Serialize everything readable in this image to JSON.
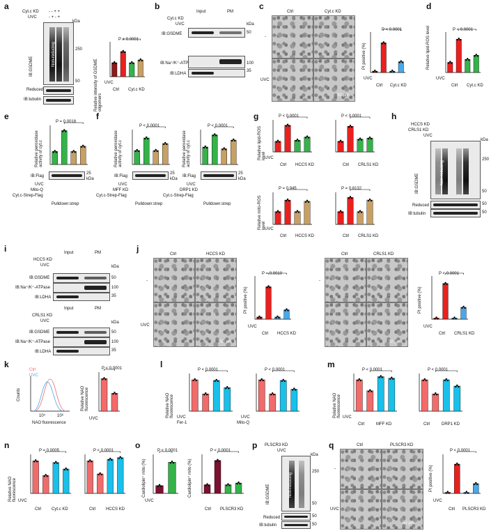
{
  "colors": {
    "ctrl": "#8c1b1b",
    "uvc": "#e8211f",
    "green": "#35b34a",
    "tan": "#c8a064",
    "blue": "#4aa8e8",
    "cyan": "#19c0ea",
    "dkred": "#7a1230",
    "pink": "#f26b6b"
  },
  "panels": {
    "a": {
      "letter": "a",
      "rows": [
        "Cyt.c KD",
        "UVC"
      ],
      "signs": [
        "- - + +",
        "- + - +"
      ],
      "kda": "kDa",
      "m250": "250",
      "m50": "50",
      "side": "IB:GSDME",
      "nonred": "Non-reducing",
      "reduced": "Reduced",
      "tubulin": "IB:tubulin",
      "ylabel": "Relative intensity of GSDME oligomers",
      "p": "P < 0.0001",
      "uvc": "UVC",
      "x1": "Ctrl",
      "x2": "Cyt.c KD"
    },
    "b": {
      "letter": "b",
      "input": "Input",
      "pm": "PM",
      "rows": [
        "Cyt.c KD",
        "UVC"
      ],
      "kda": "kDa",
      "l1": "IB:GSDME",
      "l2": "IB:Na⁺/K⁺-ATPase",
      "l3": "IB:LDHA",
      "m50": "50",
      "m100": "100",
      "m35": "35"
    },
    "c": {
      "letter": "c",
      "ctrl": "Ctrl",
      "kd": "Cyt.c KD",
      "dash": "-",
      "uvc": "UVC",
      "scale": "50 µm",
      "ylabel": "PI positive (%)",
      "p": "P < 0.0001",
      "x1": "Ctrl",
      "x2": "Cyt.c KD"
    },
    "d": {
      "letter": "d",
      "ylabel": "Relative lipid-ROS level",
      "p": "P < 0.0001",
      "uvc": "UVC",
      "x1": "Ctrl",
      "x2": "Cyt.c KD"
    },
    "e": {
      "letter": "e",
      "ylabel": "Relative peroxidase activity of cyt.c",
      "p": "P = 0.0018",
      "rows": [
        "UVC",
        "Mito-Q",
        "Cyt.c-Strep-Flag"
      ],
      "ib": "IB:Flag",
      "m25": "25",
      "kda": "kDa",
      "pull": "Pulldown:strep"
    },
    "f": {
      "letter": "f",
      "ylabel": "Relative peroxidase activity of cyt.c",
      "p1": "P < 0.0001",
      "p2": "P < 0.0001",
      "rows1": [
        "UVC",
        "MFF KD",
        "Cyt.c-Strep-Flag"
      ],
      "rows2": [
        "UVC",
        "DRP1 KD",
        "Cyt.c-Strep-Flag"
      ],
      "ib": "IB:Flag",
      "m25": "25",
      "kda": "kDa",
      "pull": "Pulldown:strep"
    },
    "g": {
      "letter": "g",
      "ylabel1": "Relative lipid-ROS level",
      "ylabel2": "Relative mito-ROS level",
      "p1": "P < 0.0001",
      "p2": "P < 0.0001",
      "p3": "P = 0.945",
      "p4": "P = 0.8132",
      "uvc": "UVC",
      "x1": "Ctrl",
      "x2": "HCCS KD",
      "x3": "CRLS1 KD"
    },
    "h": {
      "letter": "h",
      "rows": [
        "HCCS KD",
        "CRLS1 KD",
        "UVC"
      ],
      "kda": "kDa",
      "m250": "250",
      "m50": "50",
      "side": "IB:GSDME",
      "nonred": "Non-reducing",
      "reduced": "Reduced",
      "tubulin": "IB:tubulin"
    },
    "i": {
      "letter": "i",
      "input": "Input",
      "pm": "PM",
      "rows1": [
        "HCCS KD",
        "UVC"
      ],
      "rows2": [
        "CRLS1 KD",
        "UVC"
      ],
      "kda": "kDa",
      "l1": "IB:GSDME",
      "l2": "IB:Na⁺/K⁺-ATPase",
      "l3": "IB:LDHA",
      "m50": "50",
      "m100": "100",
      "m35": "35"
    },
    "j": {
      "letter": "j",
      "ctrl": "Ctrl",
      "hccs": "HCCS KD",
      "crls": "CRLS1 KD",
      "dash": "-",
      "uvc": "UVC",
      "scale": "50 µm",
      "ylabel": "PI positive (%)",
      "p1": "P = 0.0010",
      "p2": "P < 0.0001",
      "x1": "Ctrl",
      "x2": "HCCS KD",
      "x3": "CRLS1 KD"
    },
    "k": {
      "letter": "k",
      "leg1": "Ctrl",
      "leg2": "UVC",
      "ylabel": "Counts",
      "xlabel": "NAO fluorescence",
      "t1": "10⁴",
      "t2": "10⁶",
      "ylabel2": "Relative NAO fluorescence",
      "p": "P < 0.0001",
      "uvc": "UVC"
    },
    "l": {
      "letter": "l",
      "ylabel": "Relative NAO fluorescence",
      "p1": "P < 0.0001",
      "p2": "P < 0.0001",
      "uvc": "UVC",
      "fer": "Fer-1",
      "mito": "Mito-Q"
    },
    "m": {
      "letter": "m",
      "ylabel": "Relative NAO fluorescence",
      "p1": "P < 0.0001",
      "p2": "P < 0.0001",
      "uvc": "UVC",
      "x1": "Ctrl",
      "x2": "MFF KD",
      "x3": "DRP1 KD"
    },
    "n": {
      "letter": "n",
      "ylabel": "Relative NAO fluorescence",
      "p1": "P = 0.0005",
      "p2": "P < 0.0001",
      "uvc": "UVC",
      "x1": "Ctrl",
      "x2": "Cyt.c KD",
      "x3": "HCCS KD"
    },
    "o": {
      "letter": "o",
      "ylabel": "Cardiolipin⁺ mito (%)",
      "p1": "P < 0.0001",
      "p2": "P < 0.0001",
      "uvc": "UVC",
      "x1": "Ctrl",
      "x2": "PLSCR3 KD"
    },
    "p": {
      "letter": "p",
      "rows": [
        "PLSCR3 KD",
        "UVC"
      ],
      "kda": "kDa",
      "m250": "250",
      "m50": "50",
      "side": "IB:GSDME",
      "nonred": "Non-reducing",
      "reduced": "Reduced",
      "tubulin": "IB:tubulin"
    },
    "q": {
      "letter": "q",
      "ctrl": "Ctrl",
      "kd": "PLSCR3 KD",
      "dash": "-",
      "uvc": "UVC",
      "scale": "50 µm",
      "ylabel": "PI positive (%)",
      "p": "P < 0.0001",
      "x1": "Ctrl",
      "x2": "PLSCR3 KD"
    }
  },
  "chart_data": [
    {
      "type": "bar",
      "id": "a-quant",
      "categories": [
        "Ctrl -",
        "Ctrl UVC",
        "Cyt.c KD -",
        "Cyt.c KD UVC"
      ],
      "values": [
        1.0,
        1.8,
        1.0,
        1.2
      ],
      "ylim": [
        0,
        2.5
      ]
    },
    {
      "type": "bar",
      "id": "c-quant",
      "categories": [
        "Ctrl -",
        "Ctrl UVC",
        "Cyt.c KD -",
        "Cyt.c KD UVC"
      ],
      "values": [
        2,
        44,
        2,
        16
      ],
      "ylim": [
        0,
        60
      ]
    },
    {
      "type": "bar",
      "id": "d-quant",
      "categories": [
        "Ctrl -",
        "Ctrl UVC",
        "Cyt.c KD -",
        "Cyt.c KD UVC"
      ],
      "values": [
        1.0,
        3.3,
        1.3,
        1.7
      ],
      "ylim": [
        0,
        4
      ]
    },
    {
      "type": "bar",
      "id": "e-quant",
      "categories": [
        "-",
        "UVC",
        "Mito-Q",
        "UVC+Mito-Q"
      ],
      "values": [
        1.0,
        2.6,
        1.0,
        1.4
      ],
      "ylim": [
        0,
        3
      ]
    },
    {
      "type": "bar",
      "id": "f1-quant",
      "categories": [
        "-",
        "UVC",
        "MFF KD",
        "UVC+MFF KD"
      ],
      "values": [
        1.0,
        1.9,
        1.0,
        1.5
      ],
      "ylim": [
        0,
        2.5
      ]
    },
    {
      "type": "bar",
      "id": "f2-quant",
      "categories": [
        "-",
        "UVC",
        "DRP1 KD",
        "UVC+DRP1 KD"
      ],
      "values": [
        1.0,
        1.7,
        0.9,
        1.4
      ],
      "ylim": [
        0,
        2
      ]
    },
    {
      "type": "bar",
      "id": "g1",
      "categories": [
        "Ctrl -",
        "Ctrl UVC",
        "HCCS KD -",
        "HCCS KD UVC"
      ],
      "values": [
        1.0,
        2.5,
        1.1,
        1.4
      ],
      "ylim": [
        0,
        3
      ]
    },
    {
      "type": "bar",
      "id": "g2",
      "categories": [
        "Ctrl -",
        "Ctrl UVC",
        "CRLS1 KD -",
        "CRLS1 KD UVC"
      ],
      "values": [
        1.0,
        2.4,
        1.2,
        1.3
      ],
      "ylim": [
        0,
        3
      ]
    },
    {
      "type": "bar",
      "id": "g3",
      "categories": [
        "Ctrl -",
        "Ctrl UVC",
        "HCCS KD -",
        "HCCS KD UVC"
      ],
      "values": [
        1.0,
        1.9,
        1.0,
        1.8
      ],
      "ylim": [
        0,
        2.5
      ]
    },
    {
      "type": "bar",
      "id": "g4",
      "categories": [
        "Ctrl -",
        "Ctrl UVC",
        "CRLS1 KD -",
        "CRLS1 KD UVC"
      ],
      "values": [
        1.0,
        2.1,
        1.0,
        1.9
      ],
      "ylim": [
        0,
        2.5
      ]
    },
    {
      "type": "bar",
      "id": "j1",
      "categories": [
        "Ctrl -",
        "Ctrl UVC",
        "HCCS KD -",
        "HCCS KD UVC"
      ],
      "values": [
        3,
        45,
        3,
        13
      ],
      "ylim": [
        0,
        60
      ]
    },
    {
      "type": "bar",
      "id": "j2",
      "categories": [
        "Ctrl -",
        "Ctrl UVC",
        "CRLS1 KD -",
        "CRLS1 KD UVC"
      ],
      "values": [
        2,
        66,
        2,
        22
      ],
      "ylim": [
        0,
        80
      ]
    },
    {
      "type": "bar",
      "id": "k2",
      "categories": [
        "-",
        "UVC"
      ],
      "values": [
        1.0,
        0.55
      ],
      "ylim": [
        0,
        1.2
      ]
    },
    {
      "type": "bar",
      "id": "l1",
      "categories": [
        "-",
        "UVC",
        "Fer-1",
        "UVC+Fer-1"
      ],
      "values": [
        1.0,
        0.55,
        0.98,
        0.75
      ],
      "ylim": [
        0,
        1.2
      ]
    },
    {
      "type": "bar",
      "id": "l2",
      "categories": [
        "-",
        "UVC",
        "Mito-Q",
        "UVC+Mito-Q"
      ],
      "values": [
        1.0,
        0.55,
        0.98,
        0.7
      ],
      "ylim": [
        0,
        1.2
      ]
    },
    {
      "type": "bar",
      "id": "m1",
      "categories": [
        "Ctrl -",
        "Ctrl UVC",
        "MFF KD -",
        "MFF KD UVC"
      ],
      "values": [
        1.0,
        0.65,
        1.1,
        1.05
      ],
      "ylim": [
        0,
        1.2
      ]
    },
    {
      "type": "bar",
      "id": "m2",
      "categories": [
        "Ctrl -",
        "Ctrl UVC",
        "DRP1 KD -",
        "DRP1 KD UVC"
      ],
      "values": [
        1.0,
        0.55,
        1.0,
        0.8
      ],
      "ylim": [
        0,
        1.2
      ]
    },
    {
      "type": "bar",
      "id": "n1",
      "categories": [
        "Ctrl -",
        "Ctrl UVC",
        "Cyt.c KD -",
        "Cyt.c KD UVC"
      ],
      "values": [
        1.0,
        0.55,
        0.95,
        0.75
      ],
      "ylim": [
        0,
        1.2
      ]
    },
    {
      "type": "bar",
      "id": "n2",
      "categories": [
        "Ctrl -",
        "Ctrl UVC",
        "HCCS KD -",
        "HCCS KD UVC"
      ],
      "values": [
        1.0,
        0.6,
        1.05,
        1.1
      ],
      "ylim": [
        0,
        1.2
      ]
    },
    {
      "type": "bar",
      "id": "o1",
      "categories": [
        "-",
        "UVC"
      ],
      "values": [
        10,
        40
      ],
      "ylim": [
        0,
        50
      ]
    },
    {
      "type": "bar",
      "id": "o2",
      "categories": [
        "Ctrl -",
        "Ctrl UVC",
        "PLSCR3 KD -",
        "PLSCR3 KD UVC"
      ],
      "values": [
        10,
        38,
        10,
        12
      ],
      "ylim": [
        0,
        45
      ]
    },
    {
      "type": "bar",
      "id": "q-quant",
      "categories": [
        "Ctrl -",
        "Ctrl UVC",
        "PLSCR3 KD -",
        "PLSCR3 KD UVC"
      ],
      "values": [
        2,
        60,
        2,
        20
      ],
      "ylim": [
        0,
        80
      ]
    }
  ]
}
